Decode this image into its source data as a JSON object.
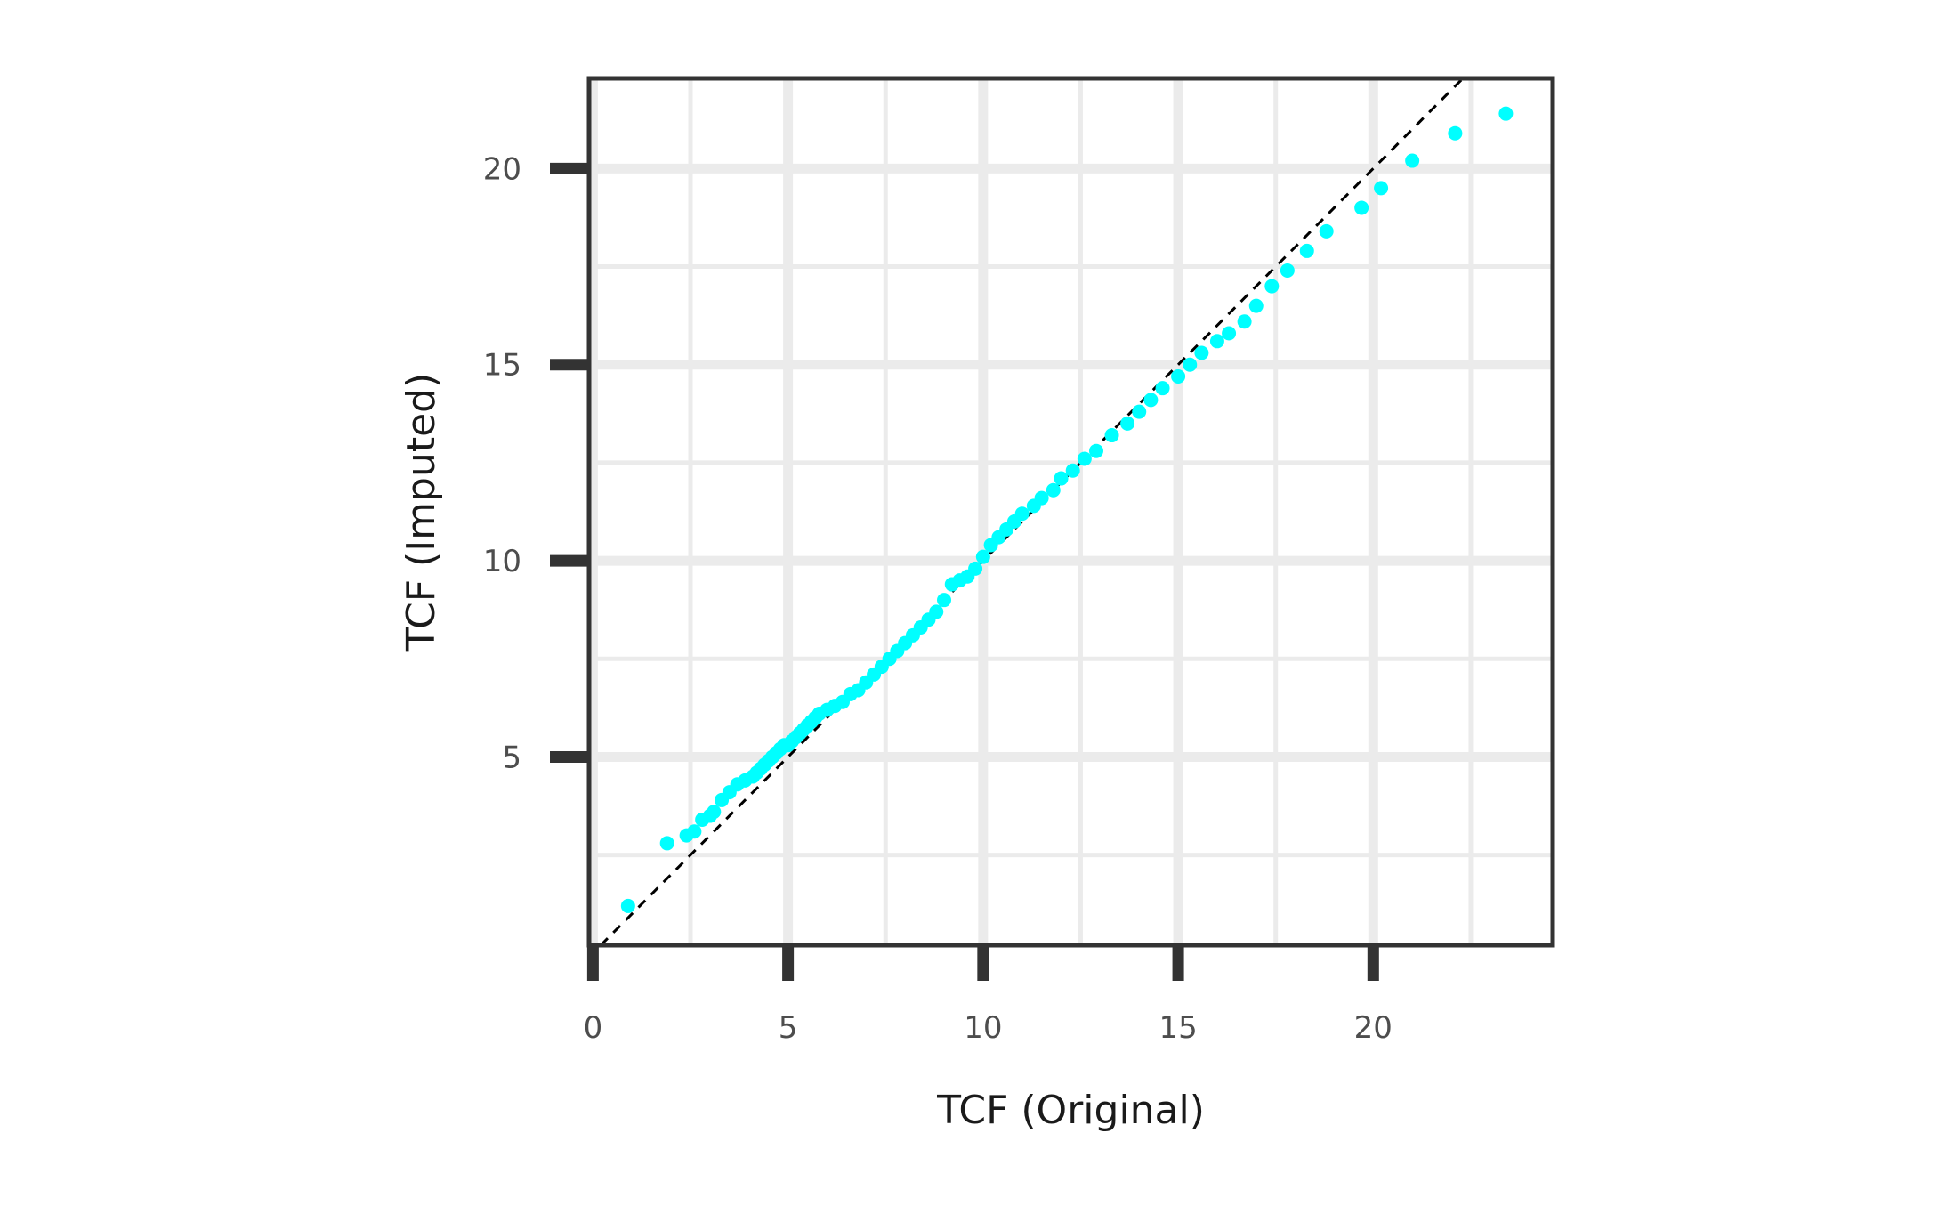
{
  "chart_data": {
    "type": "scatter",
    "title": "",
    "xlabel": "TCF (Original)",
    "ylabel": "TCF (Imputed)",
    "xlim": [
      -0.1,
      24.6
    ],
    "ylim": [
      0.2,
      22.3
    ],
    "x_ticks": [
      "0",
      "5",
      "10",
      "15",
      "20"
    ],
    "x_tick_values": [
      0,
      5,
      10,
      15,
      20
    ],
    "y_ticks": [
      "5",
      "10",
      "15",
      "20"
    ],
    "y_tick_values": [
      5,
      10,
      15,
      20
    ],
    "grid": true,
    "reference_line": {
      "type": "identity",
      "style": "dashed",
      "color": "#000000"
    },
    "colors": {
      "points": "#00ffff",
      "grid": "#ebebeb",
      "axis": "#333333"
    },
    "series": [
      {
        "points": [
          [
            0.9,
            1.2
          ],
          [
            1.9,
            2.8
          ],
          [
            2.4,
            3.0
          ],
          [
            2.6,
            3.1
          ],
          [
            2.8,
            3.4
          ],
          [
            3.0,
            3.5
          ],
          [
            3.1,
            3.6
          ],
          [
            3.3,
            3.9
          ],
          [
            3.5,
            4.1
          ],
          [
            3.7,
            4.3
          ],
          [
            3.9,
            4.4
          ],
          [
            4.1,
            4.5
          ],
          [
            4.2,
            4.6
          ],
          [
            4.3,
            4.7
          ],
          [
            4.4,
            4.8
          ],
          [
            4.5,
            4.9
          ],
          [
            4.6,
            5.0
          ],
          [
            4.7,
            5.1
          ],
          [
            4.8,
            5.2
          ],
          [
            4.9,
            5.3
          ],
          [
            5.0,
            5.3
          ],
          [
            5.1,
            5.4
          ],
          [
            5.2,
            5.5
          ],
          [
            5.3,
            5.6
          ],
          [
            5.4,
            5.7
          ],
          [
            5.5,
            5.8
          ],
          [
            5.6,
            5.9
          ],
          [
            5.7,
            6.0
          ],
          [
            5.8,
            6.1
          ],
          [
            6.0,
            6.2
          ],
          [
            6.2,
            6.3
          ],
          [
            6.4,
            6.4
          ],
          [
            6.6,
            6.6
          ],
          [
            6.8,
            6.7
          ],
          [
            7.0,
            6.9
          ],
          [
            7.2,
            7.1
          ],
          [
            7.4,
            7.3
          ],
          [
            7.6,
            7.5
          ],
          [
            7.8,
            7.7
          ],
          [
            8.0,
            7.9
          ],
          [
            8.2,
            8.1
          ],
          [
            8.4,
            8.3
          ],
          [
            8.6,
            8.5
          ],
          [
            8.8,
            8.7
          ],
          [
            9.0,
            9.0
          ],
          [
            9.2,
            9.4
          ],
          [
            9.4,
            9.5
          ],
          [
            9.6,
            9.6
          ],
          [
            9.8,
            9.8
          ],
          [
            10.0,
            10.1
          ],
          [
            10.2,
            10.4
          ],
          [
            10.4,
            10.6
          ],
          [
            10.6,
            10.8
          ],
          [
            10.8,
            11.0
          ],
          [
            11.0,
            11.2
          ],
          [
            11.3,
            11.4
          ],
          [
            11.5,
            11.6
          ],
          [
            11.8,
            11.8
          ],
          [
            12.0,
            12.1
          ],
          [
            12.3,
            12.3
          ],
          [
            12.6,
            12.6
          ],
          [
            12.9,
            12.8
          ],
          [
            13.3,
            13.2
          ],
          [
            13.7,
            13.5
          ],
          [
            14.0,
            13.8
          ],
          [
            14.3,
            14.1
          ],
          [
            14.6,
            14.4
          ],
          [
            15.0,
            14.7
          ],
          [
            15.3,
            15.0
          ],
          [
            15.6,
            15.3
          ],
          [
            16.0,
            15.6
          ],
          [
            16.3,
            15.8
          ],
          [
            16.7,
            16.1
          ],
          [
            17.0,
            16.5
          ],
          [
            17.4,
            17.0
          ],
          [
            17.8,
            17.4
          ],
          [
            18.3,
            17.9
          ],
          [
            18.8,
            18.4
          ],
          [
            19.7,
            19.0
          ],
          [
            20.2,
            19.5
          ],
          [
            21.0,
            20.2
          ],
          [
            22.1,
            20.9
          ],
          [
            23.4,
            21.4
          ]
        ]
      }
    ]
  }
}
